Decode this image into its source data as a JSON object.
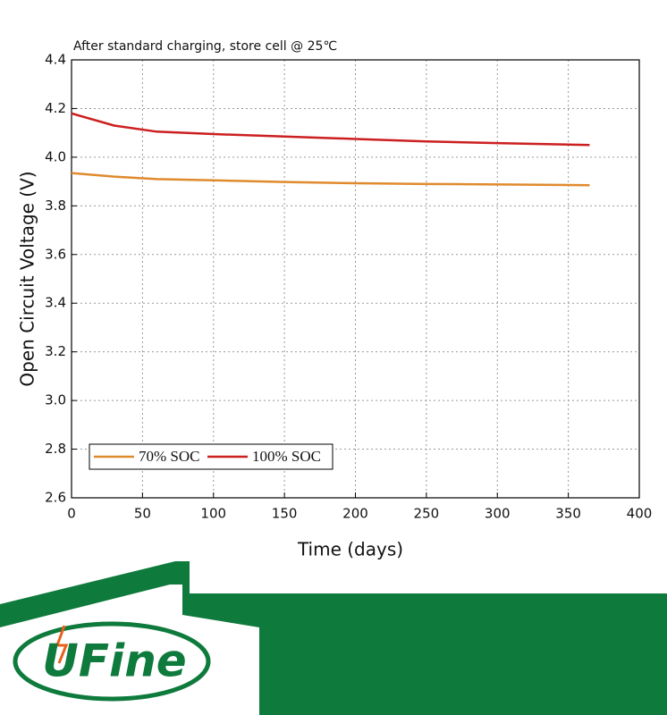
{
  "chart_data": {
    "type": "line",
    "title": "After standard charging, store cell @ 25℃",
    "x_label": "Time  (days)",
    "y_label": "Open Circuit Voltage  (V)",
    "x": [
      0,
      30,
      60,
      100,
      150,
      200,
      250,
      300,
      365
    ],
    "series": [
      {
        "name": "70% SOC",
        "color": "#e08a2e",
        "values": [
          3.935,
          3.92,
          3.91,
          3.905,
          3.898,
          3.893,
          3.89,
          3.888,
          3.885
        ]
      },
      {
        "name": "100% SOC",
        "color": "#cc1f1f",
        "values": [
          4.18,
          4.13,
          4.105,
          4.095,
          4.085,
          4.075,
          4.065,
          4.058,
          4.05
        ]
      }
    ],
    "xlim": [
      0,
      400
    ],
    "xticks": [
      0,
      50,
      100,
      150,
      200,
      250,
      300,
      350,
      400
    ],
    "ylim": [
      2.6,
      4.4
    ],
    "yticks": [
      2.6,
      2.8,
      {
        "value": 3,
        "label": "3.0"
      },
      3.2,
      3.4,
      3.6,
      3.8,
      {
        "value": 4,
        "label": "4.0"
      },
      4.2,
      4.4
    ],
    "grid": true,
    "legend": "lower left"
  },
  "logo": "UFine"
}
